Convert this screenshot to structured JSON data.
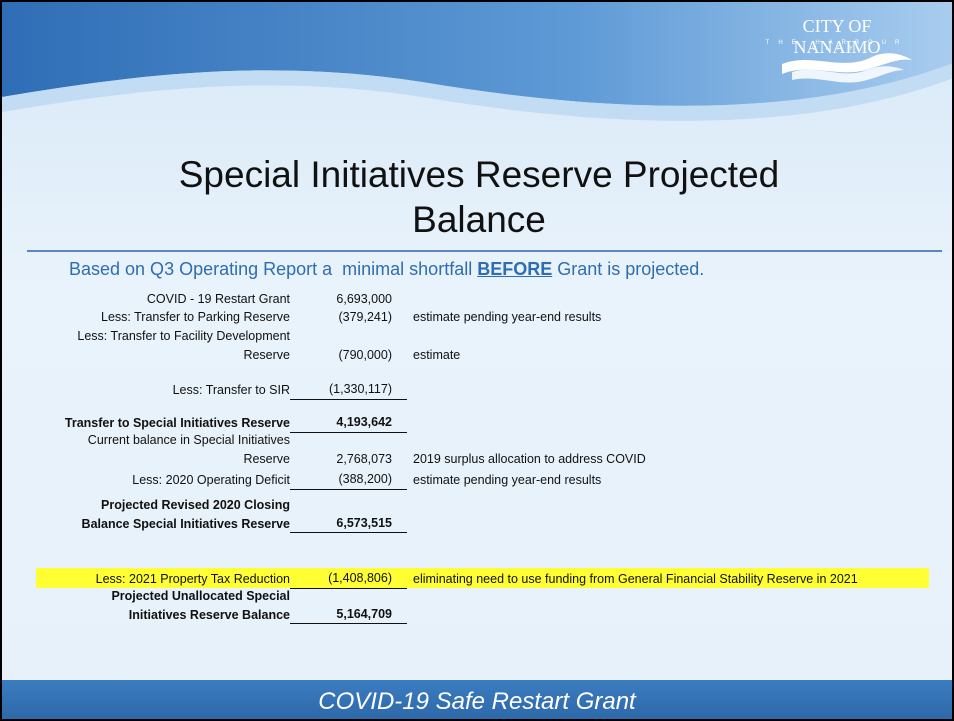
{
  "logo": {
    "name": "CITY OF NANAIMO",
    "tagline": "THE HARBOUR CITY"
  },
  "title": "Special Initiatives Reserve Projected Balance",
  "subtitle": {
    "before": "Based on Q3 Operating Report a  minimal shortfall ",
    "emphasis": "BEFORE",
    "after": " Grant is projected."
  },
  "table": {
    "rows": [
      {
        "label": [
          "COVID - 19 Restart Grant"
        ],
        "amount": "6,693,000",
        "note": ""
      },
      {
        "label": [
          "Less: Transfer to Parking Reserve"
        ],
        "amount": "(379,241)",
        "note": "estimate pending year-end results"
      },
      {
        "label": [
          "Less: Transfer to Facility Development",
          "Reserve"
        ],
        "amount": "(790,000)",
        "note": "estimate"
      },
      {
        "label": [
          "Less: Transfer to SIR"
        ],
        "amount": "(1,330,117)",
        "note": ""
      },
      {
        "label": [
          "Transfer to Special Initiatives Reserve"
        ],
        "amount": "4,193,642",
        "note": ""
      },
      {
        "label": [
          "Current balance in Special Initiatives",
          "Reserve"
        ],
        "amount": "2,768,073",
        "note": "2019 surplus allocation to address COVID"
      },
      {
        "label": [
          "Less: 2020 Operating Deficit"
        ],
        "amount": "(388,200)",
        "note": "estimate pending year-end results"
      },
      {
        "label": [
          "Projected Revised 2020 Closing",
          "Balance Special Initiatives Reserve"
        ],
        "amount": "6,573,515",
        "note": ""
      },
      {
        "label": [
          "Less: 2021 Property Tax Reduction"
        ],
        "amount": "(1,408,806)",
        "note": "eliminating need to use funding from General Financial Stability Reserve in 2021"
      },
      {
        "label": [
          "Projected Unallocated Special",
          "Initiatives Reserve Balance"
        ],
        "amount": "5,164,709",
        "note": ""
      }
    ]
  },
  "footer": "COVID-19 Safe Restart Grant"
}
